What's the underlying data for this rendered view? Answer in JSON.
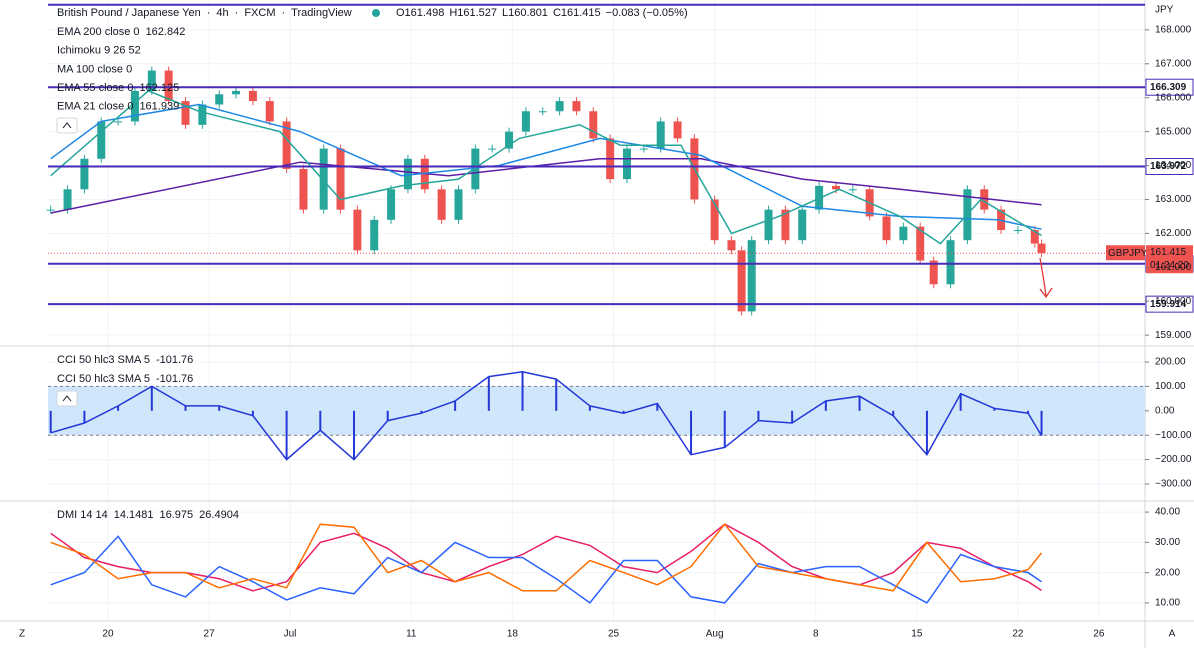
{
  "header": {
    "symbol": "British Pound / Japanese Yen",
    "interval": "4h",
    "exchange": "FXCM",
    "source": "TradingView",
    "separator": "·",
    "ohlc": [
      "O161.498",
      "H161.527",
      "L160.801",
      "C161.415",
      "−0.083 (−0.05%)"
    ]
  },
  "footer": {
    "left": "Z",
    "right": "A"
  },
  "chart_data": [
    {
      "type": "candlestick",
      "series": [
        {
          "name": "GBPJPY",
          "color": "#ef5350",
          "up_color": "#26a69a",
          "x": [
            -17,
            -12,
            -7,
            -2,
            3,
            8,
            13,
            18,
            23,
            28,
            33,
            38,
            43,
            48,
            53,
            58,
            64,
            69,
            74,
            79,
            84,
            89,
            94,
            99,
            104,
            109,
            114,
            119,
            124,
            129,
            134,
            139,
            144,
            149,
            154,
            159,
            164,
            169,
            174,
            180,
            185,
            188,
            191,
            196,
            201,
            206,
            211,
            216,
            221,
            226,
            231,
            236,
            241,
            245,
            250,
            255,
            260,
            265,
            270,
            275,
            277
          ],
          "values": [
            162.7,
            163.3,
            164.2,
            165.3,
            165.3,
            166.2,
            166.8,
            165.9,
            165.2,
            165.8,
            166.1,
            166.2,
            165.9,
            165.3,
            163.9,
            162.7,
            164.5,
            162.7,
            161.5,
            162.4,
            163.3,
            164.2,
            163.3,
            162.4,
            163.3,
            164.5,
            164.5,
            165.0,
            165.6,
            165.6,
            165.9,
            165.6,
            164.8,
            163.6,
            164.5,
            164.5,
            165.3,
            164.8,
            163.0,
            161.8,
            161.5,
            159.7,
            161.8,
            162.7,
            161.8,
            162.7,
            163.4,
            163.3,
            163.3,
            162.5,
            161.8,
            162.2,
            161.2,
            160.5,
            161.8,
            163.3,
            162.7,
            162.1,
            162.1,
            161.7,
            161.415
          ]
        },
        {
          "name": "EMA 200 close 0",
          "color": "#5b1fa6",
          "x": [
            -17,
            57,
            101,
            146,
            176,
            206,
            235,
            277
          ],
          "values": [
            162.6,
            164.1,
            163.7,
            164.2,
            164.2,
            163.6,
            163.3,
            162.842
          ]
        },
        {
          "name": "EMA 55 close 0",
          "color": "#1e88e5",
          "x": [
            -17,
            -2,
            27,
            57,
            87,
            116,
            146,
            176,
            206,
            235,
            264,
            277
          ],
          "values": [
            164.2,
            165.3,
            165.8,
            165.0,
            163.7,
            164.0,
            164.8,
            164.3,
            162.8,
            162.5,
            162.4,
            162.125
          ]
        },
        {
          "name": "EMA 21 close 0",
          "color": "#26a69a",
          "x": [
            -17,
            -2,
            12,
            27,
            51,
            69,
            87,
            104,
            122,
            140,
            152,
            170,
            185,
            199,
            217,
            235,
            247,
            259,
            277
          ],
          "values": [
            163.7,
            165.0,
            166.2,
            165.6,
            165.0,
            163.0,
            163.4,
            163.6,
            164.8,
            165.2,
            164.6,
            164.6,
            162.0,
            162.5,
            163.3,
            162.5,
            161.7,
            163.0,
            161.939
          ]
        }
      ],
      "hidden_studies": [
        "Ichimoku 9 26 52",
        "MA 100 close 0"
      ],
      "levels": [
        166.309,
        163.972,
        161.104,
        159.914
      ],
      "level_color": "#4a2ab8",
      "top_line": 168.74,
      "countdown": "01:24:20",
      "axis_unit": "JPY",
      "xlim": [
        -17.8,
        307.7
      ],
      "xticks": [
        {
          "value": 0,
          "label": "20"
        },
        {
          "value": 30,
          "label": "27"
        },
        {
          "value": 54,
          "label": "Jul"
        },
        {
          "value": 90,
          "label": "11"
        },
        {
          "value": 120,
          "label": "18"
        },
        {
          "value": 150,
          "label": "25"
        },
        {
          "value": 180,
          "label": "Aug"
        },
        {
          "value": 210,
          "label": "8"
        },
        {
          "value": 240,
          "label": "15"
        },
        {
          "value": 270,
          "label": "22"
        },
        {
          "value": 294,
          "label": "26"
        }
      ],
      "ylim": [
        158.71,
        168.88
      ],
      "yticks": [
        {
          "value": 159,
          "label": "159.000"
        },
        {
          "value": 160,
          "label": "160.000"
        },
        {
          "value": 161,
          "label": "161.000"
        },
        {
          "value": 162,
          "label": "162.000"
        },
        {
          "value": 163,
          "label": "163.000"
        },
        {
          "value": 164,
          "label": "164.000"
        },
        {
          "value": 165,
          "label": "165.000"
        },
        {
          "value": 166,
          "label": "166.000"
        },
        {
          "value": 167,
          "label": "167.000"
        },
        {
          "value": 168,
          "label": "168.000"
        }
      ]
    },
    {
      "type": "line",
      "histogram": true,
      "band": [
        -100,
        100
      ],
      "band_color": "#cfe6fb",
      "series": [
        {
          "name": "CCI 50 hlc3 SMA 5",
          "color": "#2438d8",
          "x": [
            -17,
            -7,
            3,
            13,
            23,
            33,
            43,
            53,
            63,
            73,
            83,
            93,
            103,
            113,
            123,
            133,
            143,
            153,
            163,
            173,
            183,
            193,
            203,
            213,
            223,
            233,
            243,
            253,
            263,
            273,
            277
          ],
          "values": [
            -90,
            -50,
            20,
            100,
            20,
            20,
            -20,
            -200,
            -80,
            -200,
            -40,
            -10,
            40,
            140,
            160,
            130,
            20,
            -10,
            30,
            -180,
            -150,
            -40,
            -50,
            40,
            60,
            -20,
            -180,
            70,
            10,
            -10,
            -101.76
          ]
        }
      ],
      "ylim": [
        -365.6,
        257.4
      ],
      "yticks": [
        {
          "value": 200,
          "label": "200.00"
        },
        {
          "value": 100,
          "label": "100.00"
        },
        {
          "value": 0,
          "label": "0.00"
        },
        {
          "value": -100,
          "label": "−100.00"
        },
        {
          "value": -200,
          "label": "−200.00"
        },
        {
          "value": -300,
          "label": "−300.00"
        }
      ]
    },
    {
      "type": "line",
      "title": "DMI 14 14",
      "series": [
        {
          "color": "#e91e63",
          "x": [
            -17,
            -7,
            3,
            13,
            23,
            33,
            43,
            53,
            63,
            73,
            83,
            93,
            103,
            113,
            123,
            133,
            143,
            153,
            163,
            173,
            183,
            193,
            203,
            213,
            223,
            233,
            243,
            253,
            263,
            273,
            277
          ],
          "values": [
            33,
            25,
            22,
            20,
            20,
            18,
            14,
            17,
            30,
            33,
            28,
            20,
            17,
            22,
            26,
            32,
            29,
            22,
            20,
            27,
            36,
            30,
            22,
            18,
            16,
            20,
            30,
            28,
            22,
            17,
            14.1481
          ]
        },
        {
          "color": "#2962ff",
          "x": [
            -17,
            -7,
            3,
            13,
            23,
            33,
            43,
            53,
            63,
            73,
            83,
            93,
            103,
            113,
            123,
            133,
            143,
            153,
            163,
            173,
            183,
            193,
            203,
            213,
            223,
            233,
            243,
            253,
            263,
            273,
            277
          ],
          "values": [
            16,
            20,
            32,
            16,
            12,
            22,
            17,
            11,
            15,
            13,
            25,
            20,
            30,
            25,
            25,
            18,
            10,
            24,
            24,
            12,
            10,
            23,
            20,
            22,
            22,
            16,
            10,
            26,
            22,
            20,
            16.975
          ]
        },
        {
          "color": "#ff6d00",
          "x": [
            -17,
            -7,
            3,
            13,
            23,
            33,
            43,
            53,
            63,
            73,
            83,
            93,
            103,
            113,
            123,
            133,
            143,
            153,
            163,
            173,
            183,
            193,
            203,
            213,
            223,
            233,
            243,
            253,
            263,
            273,
            277
          ],
          "values": [
            30,
            26,
            18,
            20,
            20,
            15,
            18,
            15,
            36,
            35,
            20,
            24,
            17,
            20,
            14,
            14,
            24,
            20,
            16,
            22,
            36,
            22,
            20,
            18,
            16,
            14,
            30,
            17,
            18,
            21,
            26.4904
          ]
        }
      ],
      "ylim": [
        4.36,
        43
      ],
      "yticks": [
        {
          "value": 10,
          "label": "10.00"
        },
        {
          "value": 20,
          "label": "20.00"
        },
        {
          "value": 30,
          "label": "30.00"
        },
        {
          "value": 40,
          "label": "40.00"
        }
      ]
    }
  ]
}
